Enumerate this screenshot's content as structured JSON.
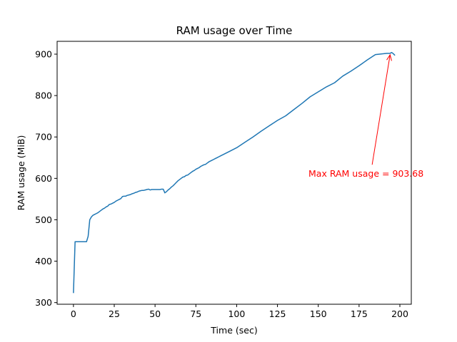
{
  "chart_data": {
    "type": "line",
    "title": "RAM usage over Time",
    "xlabel": "Time (sec)",
    "ylabel": "RAM usage (MiB)",
    "xlim": [
      -10,
      207
    ],
    "ylim": [
      296,
      931
    ],
    "xticks": [
      0,
      25,
      50,
      75,
      100,
      125,
      150,
      175,
      200
    ],
    "yticks": [
      300,
      400,
      500,
      600,
      700,
      800,
      900
    ],
    "grid": false,
    "series": [
      {
        "color": "#1f77b4",
        "x": [
          0,
          1,
          2,
          3,
          4,
          5,
          6,
          7,
          8,
          9,
          10,
          11,
          12,
          13,
          14,
          15,
          16,
          17,
          18,
          19,
          20,
          21,
          22,
          23,
          24,
          25,
          26,
          27,
          28,
          29,
          30,
          31,
          32,
          33,
          34,
          35,
          36,
          37,
          38,
          39,
          40,
          41,
          42,
          43,
          44,
          45,
          46,
          47,
          48,
          49,
          50,
          51,
          52,
          53,
          54,
          55,
          56,
          57,
          58,
          59,
          60,
          61,
          62,
          63,
          64,
          65,
          66,
          67,
          68,
          69,
          70,
          71,
          72,
          73,
          74,
          75,
          76,
          77,
          78,
          79,
          80,
          81,
          82,
          83,
          84,
          85,
          86,
          87,
          88,
          89,
          90,
          95,
          100,
          105,
          110,
          115,
          120,
          125,
          130,
          135,
          140,
          145,
          150,
          155,
          160,
          165,
          170,
          175,
          180,
          185,
          190,
          192,
          193,
          194,
          195,
          196,
          197
        ],
        "y": [
          323,
          447,
          447,
          447,
          447,
          447,
          447,
          447,
          447,
          460,
          500,
          507,
          511,
          513,
          515,
          517,
          520,
          523,
          526,
          528,
          531,
          533,
          537,
          538,
          540,
          542,
          545,
          547,
          549,
          551,
          556,
          557,
          557,
          559,
          560,
          561,
          563,
          564,
          566,
          567,
          569,
          570,
          571,
          571,
          572,
          573,
          574,
          572,
          573,
          573,
          573,
          573,
          573,
          573,
          574,
          574,
          565,
          568,
          572,
          575,
          579,
          582,
          586,
          590,
          594,
          597,
          600,
          603,
          604,
          607,
          608,
          611,
          614,
          617,
          619,
          622,
          624,
          626,
          629,
          631,
          633,
          634,
          637,
          640,
          642,
          644,
          646,
          648,
          650,
          652,
          654,
          664,
          674,
          687,
          700,
          714,
          727,
          740,
          751,
          766,
          781,
          797,
          809,
          821,
          831,
          847,
          859,
          872,
          886,
          899,
          901,
          902,
          902,
          902,
          904,
          901,
          897
        ]
      }
    ],
    "annotations": [
      {
        "text": "Max RAM usage = 903.68",
        "x": 194,
        "y": 903.68,
        "text_x": 144,
        "text_y": 604,
        "color": "#ff0000"
      }
    ]
  }
}
